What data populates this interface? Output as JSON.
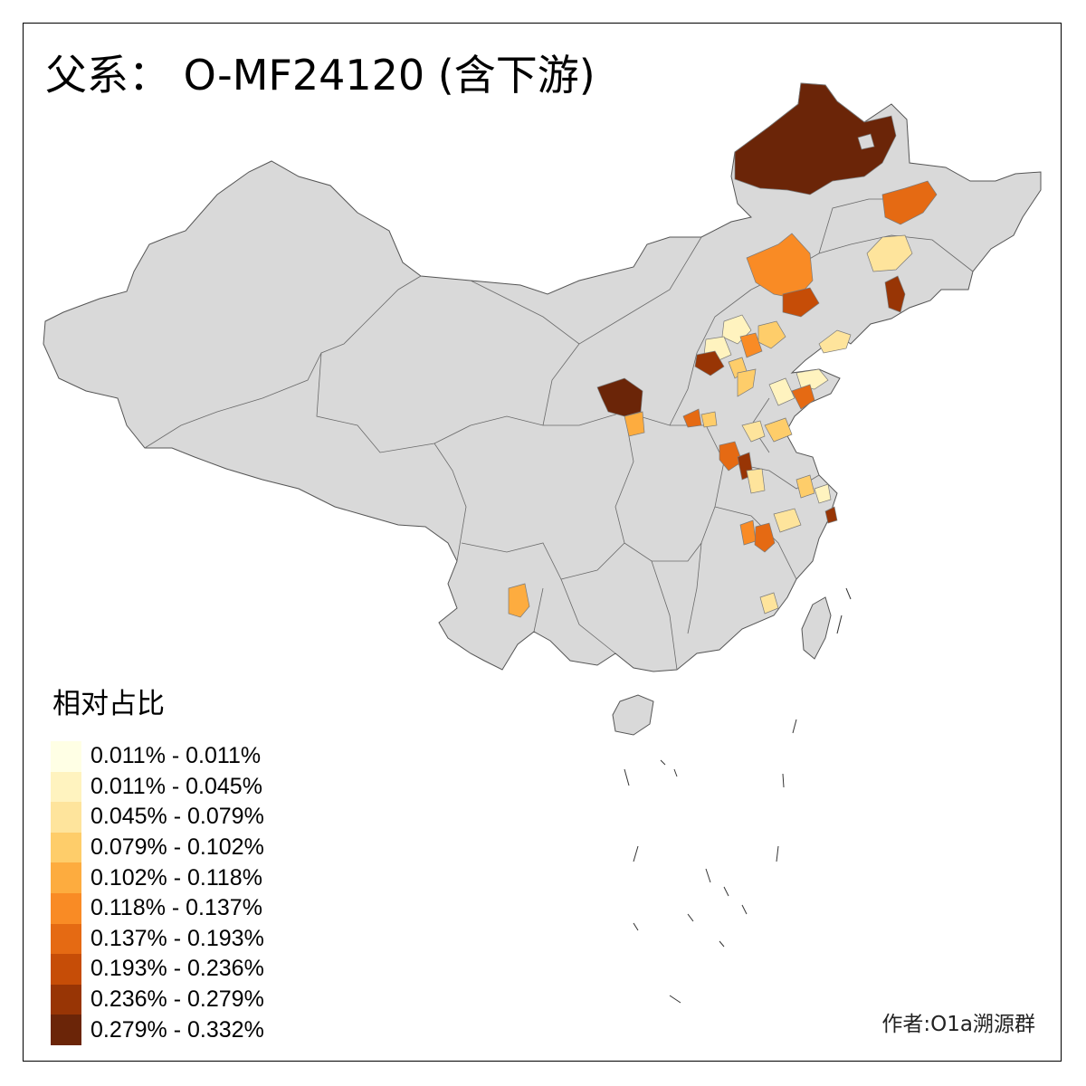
{
  "title": "父系： O-MF24120 (含下游)",
  "legend": {
    "title": "相对占比",
    "items": [
      {
        "label": "0.011% - 0.011%",
        "color": "#ffffe5"
      },
      {
        "label": "0.011% - 0.045%",
        "color": "#fff3bf"
      },
      {
        "label": "0.045% - 0.079%",
        "color": "#fee49c"
      },
      {
        "label": "0.079% - 0.102%",
        "color": "#fecd6a"
      },
      {
        "label": "0.102% - 0.118%",
        "color": "#fdac3f"
      },
      {
        "label": "0.118% - 0.137%",
        "color": "#f98b25"
      },
      {
        "label": "0.137% - 0.193%",
        "color": "#e56a13"
      },
      {
        "label": "0.193% - 0.236%",
        "color": "#c64d07"
      },
      {
        "label": "0.236% - 0.279%",
        "color": "#983505"
      },
      {
        "label": "0.279% - 0.332%",
        "color": "#6b2508"
      }
    ]
  },
  "author": "作者:O1a溯源群",
  "map": {
    "base_color": "#d9d9d9",
    "border_color": "#555555"
  }
}
